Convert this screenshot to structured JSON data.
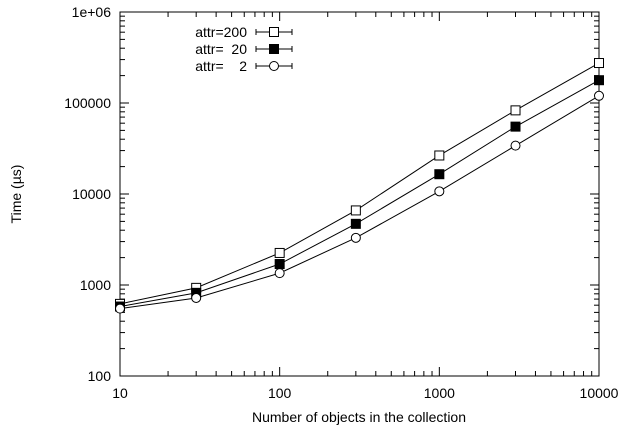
{
  "chart_data": {
    "type": "line",
    "title": "",
    "xlabel": "Number of objects in the collection",
    "ylabel": "Time (µs)",
    "xscale": "log",
    "yscale": "log",
    "xlim": [
      10,
      10000
    ],
    "ylim": [
      100,
      1000000
    ],
    "xticks": [
      10,
      100,
      1000,
      10000
    ],
    "xtick_labels": [
      "10",
      "100",
      "1000",
      "10000"
    ],
    "yticks": [
      100,
      1000,
      10000,
      100000,
      1000000
    ],
    "ytick_labels": [
      "100",
      "1000",
      "10000",
      "100000",
      "1e+06"
    ],
    "grid": false,
    "legend_position": "top-left",
    "x": [
      10,
      30,
      100,
      300,
      1000,
      3000,
      10000
    ],
    "series": [
      {
        "name": "attr=200",
        "marker": "open-square",
        "values": [
          620,
          930,
          2250,
          6600,
          26500,
          83000,
          275000
        ]
      },
      {
        "name": "attr=  20",
        "marker": "filled-square",
        "values": [
          580,
          820,
          1700,
          4700,
          16500,
          55000,
          178000
        ]
      },
      {
        "name": "attr=    2",
        "marker": "open-circle",
        "values": [
          550,
          720,
          1350,
          3300,
          10700,
          34000,
          120000
        ]
      }
    ]
  }
}
